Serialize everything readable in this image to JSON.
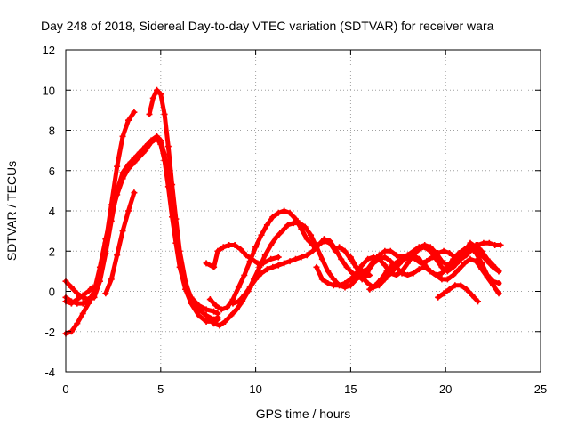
{
  "chart_data": {
    "type": "line",
    "title": "Day 248 of 2018, Sidereal Day-to-day VTEC variation (SDTVAR) for receiver wara",
    "xlabel": "GPS time / hours",
    "ylabel": "SDTVAR / TECUs",
    "xlim": [
      0,
      25
    ],
    "ylim": [
      -4,
      12
    ],
    "xticks": [
      0,
      5,
      10,
      15,
      20,
      25
    ],
    "yticks": [
      -4,
      -2,
      0,
      2,
      4,
      6,
      8,
      10,
      12
    ],
    "grid": true,
    "marker": "plus",
    "color": "#ff0000",
    "series": [
      {
        "name": "trace-1",
        "x": [
          0.0,
          0.3,
          0.6,
          0.9,
          1.2,
          1.5,
          1.8,
          2.1,
          2.4,
          2.7,
          3.0,
          3.3,
          3.6
        ],
        "y": [
          -2.1,
          -2.0,
          -1.6,
          -1.1,
          -0.6,
          -0.1,
          0.9,
          2.4,
          4.3,
          6.2,
          7.7,
          8.5,
          8.9
        ]
      },
      {
        "name": "trace-2",
        "x": [
          4.4,
          4.6,
          4.8,
          5.0,
          5.2,
          5.4,
          5.6,
          5.8,
          6.0,
          6.3,
          6.6,
          7.0,
          7.4,
          7.8,
          8.0
        ],
        "y": [
          8.8,
          9.6,
          10.0,
          9.8,
          8.8,
          7.2,
          5.3,
          3.6,
          2.0,
          0.5,
          -0.4,
          -0.9,
          -1.2,
          -1.4,
          -1.3
        ]
      },
      {
        "name": "trace-3",
        "x": [
          0.0,
          0.3,
          0.6,
          0.9,
          1.2,
          1.5,
          1.8,
          2.1,
          2.4,
          2.7,
          3.0,
          3.3,
          3.6,
          3.9,
          4.2,
          4.5,
          4.8,
          5.0,
          5.2,
          5.4,
          5.6,
          5.8,
          6.0,
          6.3,
          6.6,
          7.0,
          7.4,
          7.8,
          8.0
        ],
        "y": [
          -0.3,
          -0.5,
          -0.6,
          -0.6,
          -0.5,
          0.0,
          1.2,
          2.6,
          3.8,
          4.8,
          5.6,
          6.1,
          6.4,
          6.7,
          7.0,
          7.4,
          7.6,
          7.3,
          6.5,
          5.2,
          3.7,
          2.4,
          1.2,
          0.1,
          -0.6,
          -1.2,
          -1.5,
          -1.5,
          -1.4
        ]
      },
      {
        "name": "trace-4",
        "x": [
          0.0,
          0.3,
          0.6,
          0.9,
          1.2,
          1.5,
          1.8,
          2.1,
          2.4,
          2.7,
          3.0,
          3.3,
          3.6,
          3.9,
          4.2,
          4.5,
          4.8,
          5.0,
          5.2,
          5.4,
          5.6,
          5.8,
          6.0,
          6.3,
          6.6,
          7.0,
          7.4,
          7.8,
          8.0
        ],
        "y": [
          0.5,
          0.2,
          -0.1,
          -0.3,
          -0.4,
          -0.3,
          0.5,
          1.9,
          3.5,
          5.0,
          5.9,
          6.3,
          6.6,
          6.9,
          7.2,
          7.5,
          7.7,
          7.5,
          6.8,
          5.6,
          4.2,
          2.8,
          1.6,
          0.4,
          -0.3,
          -0.7,
          -0.9,
          -1.0,
          -1.1
        ]
      },
      {
        "name": "trace-5",
        "x": [
          0.0,
          0.3,
          0.6,
          0.9,
          1.2,
          1.4
        ],
        "y": [
          -0.5,
          -0.6,
          -0.4,
          -0.2,
          0.0,
          0.2
        ]
      },
      {
        "name": "trace-6",
        "x": [
          2.1,
          2.4,
          2.7,
          3.0,
          3.3,
          3.6
        ],
        "y": [
          -0.1,
          0.6,
          1.8,
          3.0,
          4.0,
          4.9
        ]
      },
      {
        "name": "trace-7",
        "x": [
          7.5,
          7.8,
          8.1,
          8.4,
          8.7,
          9.0,
          9.3,
          9.6,
          9.9,
          10.2,
          10.5,
          10.8,
          11.1,
          11.4,
          11.7,
          12.0,
          12.3,
          12.6,
          12.9,
          13.2,
          13.5,
          13.8,
          14.1,
          14.4,
          14.7,
          15.0,
          15.3,
          15.6
        ],
        "y": [
          -1.3,
          -1.6,
          -1.7,
          -1.5,
          -1.2,
          -0.9,
          -0.5,
          0.0,
          0.6,
          1.2,
          1.8,
          2.3,
          2.7,
          3.0,
          3.3,
          3.4,
          3.4,
          3.2,
          2.8,
          2.2,
          1.6,
          1.0,
          0.6,
          0.3,
          0.2,
          0.3,
          0.6,
          0.9
        ]
      },
      {
        "name": "trace-8",
        "x": [
          7.6,
          7.9,
          8.2,
          8.5,
          8.8,
          9.1,
          9.4,
          9.7,
          10.0,
          10.3,
          10.6,
          10.9,
          11.2,
          11.5,
          11.8,
          12.1,
          12.4,
          12.7,
          13.0,
          13.3,
          13.6,
          13.9,
          14.2
        ],
        "y": [
          -0.4,
          -0.7,
          -0.9,
          -0.8,
          -0.4,
          0.2,
          0.8,
          1.5,
          2.2,
          2.8,
          3.3,
          3.7,
          3.9,
          4.0,
          3.9,
          3.6,
          3.1,
          2.6,
          2.3,
          2.3,
          2.5,
          2.4,
          2.0
        ]
      },
      {
        "name": "trace-9",
        "x": [
          7.4,
          7.8,
          8.0,
          8.3,
          8.6,
          8.9,
          9.2,
          9.5,
          9.8,
          10.1,
          10.4,
          10.8,
          11.2
        ],
        "y": [
          1.4,
          1.2,
          2.0,
          2.2,
          2.3,
          2.3,
          2.1,
          1.8,
          1.6,
          1.4,
          1.4,
          1.6,
          1.7
        ]
      },
      {
        "name": "trace-10",
        "x": [
          8.8,
          9.1,
          9.4,
          9.7,
          10.0,
          10.3,
          10.6,
          10.9,
          11.2,
          11.5,
          11.8,
          12.1,
          12.4,
          12.7,
          13.0,
          13.3,
          13.6,
          13.9,
          14.2,
          14.5,
          14.8,
          15.1,
          15.4,
          15.7,
          16.0
        ],
        "y": [
          -0.6,
          -0.5,
          -0.2,
          0.2,
          0.6,
          0.9,
          1.1,
          1.2,
          1.3,
          1.4,
          1.5,
          1.6,
          1.7,
          1.8,
          2.0,
          2.3,
          2.6,
          2.5,
          2.1,
          1.6,
          1.2,
          0.9,
          0.8,
          0.7,
          0.8
        ]
      },
      {
        "name": "trace-11",
        "x": [
          13.2,
          13.5,
          13.8,
          14.1,
          14.4,
          14.7,
          15.0,
          15.3,
          15.6,
          15.9,
          16.2,
          16.5,
          16.8,
          17.1,
          17.4,
          17.7,
          18.0,
          18.3,
          18.6,
          18.9,
          19.2,
          19.5,
          19.8,
          20.1,
          20.4,
          20.7,
          21.0,
          21.3,
          21.6,
          21.9,
          22.2,
          22.5,
          22.8
        ],
        "y": [
          1.2,
          0.6,
          0.4,
          0.3,
          0.3,
          0.4,
          0.6,
          0.9,
          1.3,
          1.6,
          1.7,
          1.6,
          1.3,
          0.9,
          0.8,
          1.0,
          1.4,
          1.8,
          2.1,
          2.2,
          2.0,
          1.6,
          1.2,
          1.0,
          1.2,
          1.5,
          1.9,
          2.2,
          2.3,
          2.0,
          1.6,
          1.3,
          1.0
        ]
      },
      {
        "name": "trace-12",
        "x": [
          14.4,
          14.7,
          15.0,
          15.3,
          15.6,
          15.9,
          16.2,
          16.5,
          16.8,
          17.1,
          17.4,
          17.7,
          18.0,
          18.3,
          18.6,
          18.9,
          19.2,
          19.5,
          19.8,
          20.1,
          20.4,
          20.7,
          21.0,
          21.3,
          21.6,
          21.9,
          22.2,
          22.5,
          22.8
        ],
        "y": [
          2.2,
          2.0,
          1.6,
          1.2,
          1.0,
          1.1,
          1.5,
          1.8,
          2.0,
          2.0,
          1.8,
          1.7,
          1.8,
          2.0,
          2.2,
          2.3,
          2.2,
          1.9,
          1.5,
          1.3,
          1.4,
          1.7,
          2.0,
          2.4,
          2.2,
          1.8,
          1.5,
          1.2,
          1.0
        ]
      },
      {
        "name": "trace-13",
        "x": [
          15.0,
          15.3,
          15.6,
          15.9,
          16.2,
          16.5,
          16.8,
          17.1,
          17.4,
          17.7,
          18.0,
          18.3,
          18.6,
          18.9,
          19.2,
          19.5,
          19.8,
          20.1,
          20.4,
          20.7,
          21.0,
          21.3,
          21.6,
          21.9,
          22.2,
          22.5,
          22.8
        ],
        "y": [
          1.7,
          1.2,
          0.7,
          0.4,
          0.2,
          0.3,
          0.6,
          0.9,
          1.2,
          1.5,
          1.7,
          1.8,
          1.6,
          1.3,
          1.0,
          0.8,
          0.9,
          1.2,
          1.6,
          1.9,
          2.1,
          2.2,
          1.9,
          1.4,
          0.8,
          0.5,
          0.4
        ]
      },
      {
        "name": "trace-14",
        "x": [
          15.6,
          15.9,
          16.2,
          16.5,
          16.8,
          17.1,
          17.4,
          17.7,
          18.0,
          18.3,
          18.6,
          18.9,
          19.2,
          19.5,
          19.8,
          20.1,
          20.4,
          20.7,
          21.0,
          21.3,
          21.6,
          21.9,
          22.2,
          22.5,
          22.8
        ],
        "y": [
          0.6,
          1.0,
          1.4,
          1.6,
          1.7,
          1.5,
          1.2,
          0.9,
          0.8,
          0.9,
          1.1,
          1.2,
          1.0,
          0.8,
          0.6,
          0.6,
          0.8,
          1.1,
          1.4,
          1.6,
          1.5,
          1.1,
          0.7,
          0.3,
          -0.1
        ]
      },
      {
        "name": "trace-15",
        "x": [
          16.0,
          16.3,
          16.6,
          16.9,
          17.2,
          17.5,
          17.8,
          18.1,
          18.4,
          18.7,
          19.0,
          19.3,
          19.6,
          19.9,
          20.2,
          20.5,
          20.8,
          21.1,
          21.4,
          21.7,
          22.0,
          22.3,
          22.6,
          22.9
        ],
        "y": [
          0.1,
          0.3,
          0.6,
          1.0,
          1.3,
          1.5,
          1.6,
          1.7,
          1.6,
          1.4,
          1.5,
          1.7,
          1.9,
          2.0,
          1.9,
          1.7,
          1.6,
          1.8,
          2.1,
          2.3,
          2.4,
          2.4,
          2.3,
          2.3
        ]
      },
      {
        "name": "trace-16",
        "x": [
          19.6,
          19.9,
          20.2,
          20.5,
          20.8,
          21.1,
          21.4,
          21.7
        ],
        "y": [
          -0.3,
          -0.1,
          0.1,
          0.3,
          0.3,
          0.1,
          -0.2,
          -0.5
        ]
      }
    ]
  }
}
